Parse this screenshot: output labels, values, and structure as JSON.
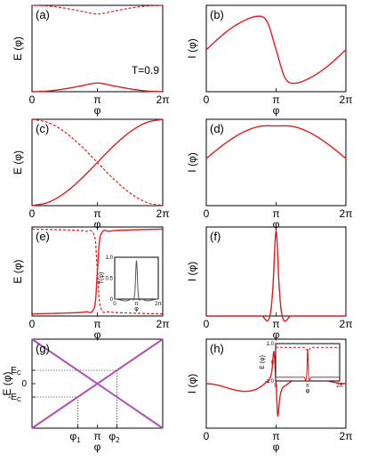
{
  "chart_data": [
    {
      "id": "a",
      "type": "line",
      "panel_label": "(a)",
      "ylabel": "E (φ)",
      "xlabel": "φ",
      "annotation": "T=0.9",
      "x_ticks": [
        "0",
        "π",
        "2π"
      ],
      "xlim": [
        0,
        6.2832
      ],
      "ylim": [
        -1.0,
        1.0
      ],
      "series": [
        {
          "style": "solid",
          "x": [
            0,
            0.785,
            1.571,
            2.356,
            3.142,
            3.927,
            4.712,
            5.498,
            6.283
          ],
          "y": [
            -1.0,
            -0.983,
            -0.935,
            -0.866,
            -0.8,
            -0.866,
            -0.935,
            -0.983,
            -1.0
          ]
        },
        {
          "style": "dashed",
          "x": [
            0,
            0.785,
            1.571,
            2.356,
            3.142,
            3.927,
            4.712,
            5.498,
            6.283
          ],
          "y": [
            1.0,
            0.983,
            0.935,
            0.866,
            0.8,
            0.866,
            0.935,
            0.983,
            1.0
          ]
        }
      ]
    },
    {
      "id": "b",
      "type": "line",
      "panel_label": "(b)",
      "ylabel": "I (φ)",
      "xlabel": "φ",
      "x_ticks": [
        "0",
        "π",
        "2π"
      ],
      "xlim": [
        0,
        6.2832
      ],
      "ylim": [
        -0.85,
        0.9
      ],
      "series": [
        {
          "style": "solid",
          "x": [
            0,
            0.785,
            1.571,
            2.356,
            2.75,
            3.142,
            3.534,
            3.927,
            4.712,
            5.498,
            6.283
          ],
          "y": [
            0.0,
            0.32,
            0.56,
            0.68,
            0.56,
            0.0,
            -0.56,
            -0.68,
            -0.56,
            -0.32,
            0.0
          ]
        }
      ]
    },
    {
      "id": "c",
      "type": "line",
      "panel_label": "(c)",
      "ylabel": "E (φ)",
      "xlabel": "φ",
      "x_ticks": [
        "0",
        "π",
        "2π"
      ],
      "xlim": [
        0,
        6.2832
      ],
      "ylim": [
        -1.0,
        1.0
      ],
      "series": [
        {
          "style": "solid",
          "x": [
            0,
            0.785,
            1.571,
            2.356,
            3.142,
            3.927,
            4.712,
            5.498,
            6.283
          ],
          "y": [
            -1.0,
            -0.924,
            -0.707,
            -0.383,
            0.0,
            0.383,
            0.707,
            0.924,
            1.0
          ]
        },
        {
          "style": "dashed",
          "x": [
            0,
            0.785,
            1.571,
            2.356,
            3.142,
            3.927,
            4.712,
            5.498,
            6.283
          ],
          "y": [
            1.0,
            0.924,
            0.707,
            0.383,
            0.0,
            -0.383,
            -0.707,
            -0.924,
            -1.0
          ]
        }
      ]
    },
    {
      "id": "d",
      "type": "line",
      "panel_label": "(d)",
      "ylabel": "I (φ)",
      "xlabel": "φ",
      "x_ticks": [
        "0",
        "π",
        "2π"
      ],
      "xlim": [
        0,
        6.2832
      ],
      "ylim": [
        0,
        1.3
      ],
      "series": [
        {
          "style": "solid",
          "x": [
            0,
            0.785,
            1.571,
            2.356,
            3.142,
            3.927,
            4.712,
            5.498,
            6.283
          ],
          "y": [
            0.71,
            0.92,
            1.09,
            1.19,
            1.2,
            1.19,
            1.09,
            0.92,
            0.71
          ]
        }
      ]
    },
    {
      "id": "e",
      "type": "line",
      "panel_label": "(e)",
      "ylabel": "E (φ)",
      "xlabel": "φ",
      "x_ticks": [
        "0",
        "π",
        "2π"
      ],
      "xlim": [
        0,
        6.2832
      ],
      "ylim": [
        -1.05,
        1.05
      ],
      "series": [
        {
          "style": "solid",
          "x": [
            0,
            1.571,
            2.6,
            2.95,
            3.05,
            3.142,
            3.24,
            3.34,
            3.7,
            4.712,
            6.283
          ],
          "y": [
            -1.0,
            -0.98,
            -0.95,
            -0.9,
            -0.7,
            0.0,
            0.7,
            0.9,
            0.95,
            0.98,
            1.0
          ]
        },
        {
          "style": "dashed",
          "x": [
            0,
            1.571,
            2.6,
            2.95,
            3.05,
            3.142,
            3.24,
            3.34,
            3.7,
            4.712,
            6.283
          ],
          "y": [
            1.0,
            0.98,
            0.95,
            0.9,
            0.7,
            0.0,
            -0.7,
            -0.9,
            -0.95,
            -0.98,
            -1.0
          ]
        }
      ],
      "inset": {
        "ylabel": "T(φ)",
        "xlabel": "φ",
        "x_ticks": [
          "0",
          "π",
          "2π"
        ],
        "y_ticks": [
          "0",
          "0.5",
          "1.0"
        ],
        "xlim": [
          0,
          6.2832
        ],
        "ylim": [
          0,
          1.0
        ],
        "series": [
          {
            "style": "solid",
            "x": [
              0,
              2.4,
              2.9,
              3.142,
              3.38,
              3.9,
              6.283
            ],
            "y": [
              0.0,
              0.01,
              0.15,
              0.92,
              0.15,
              0.01,
              0.0
            ]
          }
        ]
      }
    },
    {
      "id": "f",
      "type": "line",
      "panel_label": "(f)",
      "ylabel": "I (φ)",
      "xlabel": "φ",
      "x_ticks": [
        "0",
        "π",
        "2π"
      ],
      "xlim": [
        0,
        6.2832
      ],
      "ylim": [
        0,
        1.05
      ],
      "series": [
        {
          "style": "solid",
          "x": [
            0,
            2.5,
            2.9,
            3.0,
            3.142,
            3.28,
            3.38,
            3.8,
            6.283
          ],
          "y": [
            0.0,
            0.0,
            0.05,
            0.35,
            1.0,
            0.35,
            0.05,
            0.0,
            0.0
          ]
        }
      ]
    },
    {
      "id": "g",
      "type": "line",
      "panel_label": "(g)",
      "ylabel": "E (φ)",
      "xlabel": "φ",
      "x_ticks": [
        "φ1",
        "π",
        "φ2"
      ],
      "y_ticks": [
        "E_C",
        "0",
        "-E_C"
      ],
      "xlim": [
        0,
        6.2832
      ],
      "ylim": [
        -1.0,
        1.0
      ],
      "series": [
        {
          "style": "solid",
          "x": [
            0,
            6.283
          ],
          "y": [
            -1.0,
            1.0
          ]
        },
        {
          "style": "solid",
          "x": [
            0,
            6.283
          ],
          "y": [
            1.0,
            -1.0
          ]
        }
      ],
      "guides": {
        "phi1": 2.2,
        "phi2": 4.08,
        "Ec": 0.3
      }
    },
    {
      "id": "h",
      "type": "line",
      "panel_label": "(h)",
      "ylabel": "I (φ)",
      "xlabel": "φ",
      "x_ticks": [
        "0",
        "π",
        "2π"
      ],
      "xlim": [
        0,
        6.2832
      ],
      "ylim": [
        -1.25,
        1.25
      ],
      "series": [
        {
          "style": "solid",
          "x": [
            0,
            2.7,
            2.95,
            3.04,
            3.142,
            3.22,
            3.32,
            3.6,
            6.283
          ],
          "y": [
            0.0,
            0.04,
            0.35,
            0.9,
            0.0,
            -0.9,
            -0.35,
            -0.04,
            0.0
          ]
        }
      ],
      "inset": {
        "ylabel": "E (φ)",
        "xlabel": "φ",
        "x_ticks": [
          "0",
          "π",
          "2π"
        ],
        "y_ticks": [
          "1.0",
          "0",
          "-1.0"
        ],
        "xlim": [
          0,
          6.2832
        ],
        "ylim": [
          -1.0,
          1.0
        ],
        "series": [
          {
            "style": "solid",
            "x": [
              0,
              2.8,
              3.05,
              3.142,
              3.23,
              3.48,
              6.283
            ],
            "y": [
              -0.8,
              -0.8,
              -0.65,
              0.7,
              -0.65,
              -0.8,
              -0.8
            ]
          },
          {
            "style": "dashed",
            "x": [
              0,
              2.8,
              3.05,
              3.142,
              3.23,
              3.48,
              6.283
            ],
            "y": [
              0.8,
              0.8,
              0.65,
              0.7,
              0.65,
              0.8,
              0.8
            ]
          }
        ]
      }
    }
  ],
  "colors": {
    "curve": "#e41a1c",
    "linear": "#b04fb5",
    "axis": "#000000"
  }
}
